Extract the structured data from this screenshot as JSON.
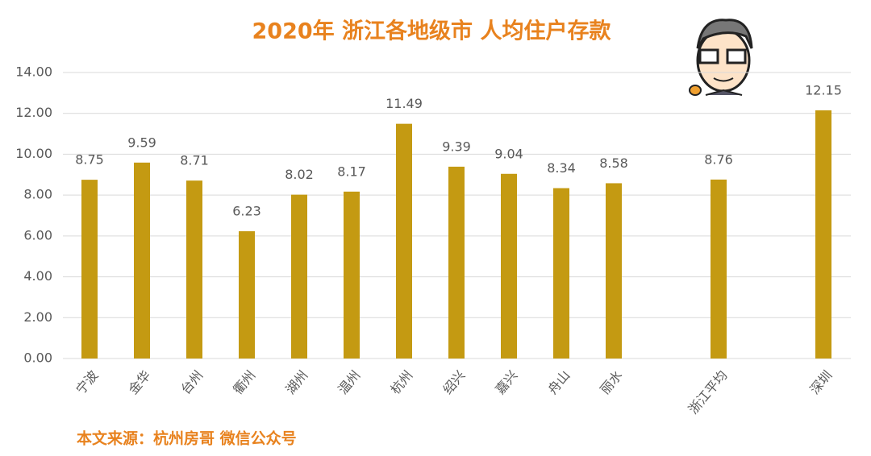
{
  "chart_data": {
    "type": "bar",
    "title": "2020年 浙江各地级市 人均住户存款",
    "source": "本文来源：杭州房哥 微信公众号",
    "categories": [
      "宁波",
      "金华",
      "台州",
      "衢州",
      "湖州",
      "温州",
      "杭州",
      "绍兴",
      "嘉兴",
      "舟山",
      "丽水",
      null,
      "浙江平均",
      null,
      "深圳"
    ],
    "values": [
      8.75,
      9.59,
      8.71,
      6.23,
      8.02,
      8.17,
      11.49,
      9.39,
      9.04,
      8.34,
      8.58,
      null,
      8.76,
      null,
      12.15
    ],
    "color": "#c49a12",
    "ylim": [
      0,
      14
    ],
    "yticks": [
      {
        "value": 0,
        "label": "0.00"
      },
      {
        "value": 2,
        "label": "2.00"
      },
      {
        "value": 4,
        "label": "4.00"
      },
      {
        "value": 6,
        "label": "6.00"
      },
      {
        "value": 8,
        "label": "8.00"
      },
      {
        "value": 10,
        "label": "10.00"
      },
      {
        "value": 12,
        "label": "12.00"
      },
      {
        "value": 14,
        "label": "14.00"
      }
    ],
    "grid": true
  }
}
